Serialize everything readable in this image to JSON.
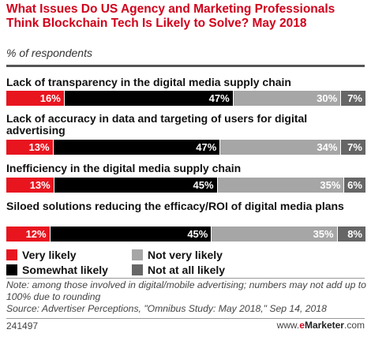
{
  "chart_data": {
    "type": "bar",
    "stacked": true,
    "orientation": "horizontal",
    "title": "What Issues Do US Agency and Marketing Professionals Think Blockchain Tech Is Likely to Solve? May 2018",
    "subtitle": "% of respondents",
    "categories": [
      "Lack of transparency in the digital media supply chain",
      "Lack of accuracy in data and targeting of users for digital advertising",
      "Inefficiency in the digital media supply chain",
      "Siloed solutions reducing the efficacy/ROI of digital media plans"
    ],
    "series": [
      {
        "name": "Very likely",
        "color": "#e8151f",
        "values": [
          16,
          13,
          13,
          12
        ],
        "labels": [
          "16%",
          "13%",
          "13%",
          "12%"
        ]
      },
      {
        "name": "Somewhat likely",
        "color": "#000000",
        "values": [
          47,
          47,
          45,
          45
        ],
        "labels": [
          "47%",
          "47%",
          "45%",
          "45%"
        ]
      },
      {
        "name": "Not very likely",
        "color": "#a6a6a6",
        "values": [
          30,
          34,
          35,
          35
        ],
        "labels": [
          "30%",
          "34%",
          "35%",
          "35%"
        ]
      },
      {
        "name": "Not at all likely",
        "color": "#666666",
        "values": [
          7,
          7,
          6,
          8
        ],
        "labels": [
          "7%",
          "7%",
          "6%",
          "8%"
        ]
      }
    ],
    "xlim": [
      0,
      100
    ],
    "legend_position": "bottom"
  },
  "footer": {
    "note": "Note: among those involved in digital/mobile advertising; numbers may not add up to 100% due to rounding",
    "source": "Source: Advertiser Perceptions, \"Omnibus Study: May 2018,\" Sep 14, 2018",
    "chart_id": "241497",
    "brand_prefix": "www.",
    "brand_e": "e",
    "brand_name": "Marketer",
    "brand_suffix": ".com"
  }
}
